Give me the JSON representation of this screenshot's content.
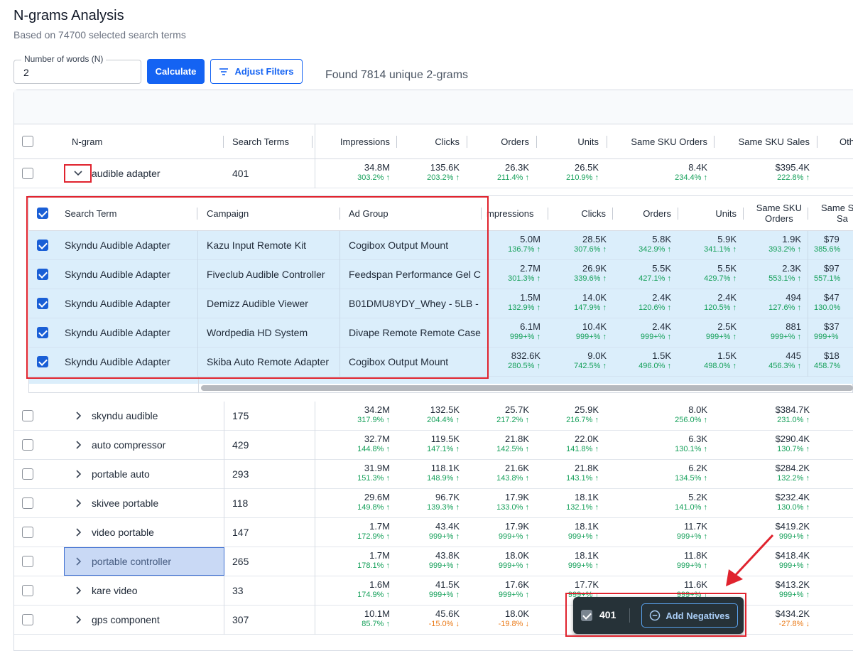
{
  "header": {
    "title": "N-grams Analysis",
    "subtitle": "Based on 74700 selected search terms"
  },
  "controls": {
    "n_label": "Number of words (N)",
    "n_value": "2",
    "calculate_label": "Calculate",
    "adjust_filters_label": "Adjust Filters",
    "found_text": "Found 7814 unique 2-grams"
  },
  "columns": {
    "ngram": "N-gram",
    "search_terms": "Search Terms",
    "impressions": "Impressions",
    "clicks": "Clicks",
    "orders": "Orders",
    "units": "Units",
    "same_sku_orders": "Same SKU Orders",
    "same_sku_sales": "Same SKU Sales",
    "other": "Oth"
  },
  "expanded_row": {
    "ngram": "audible adapter",
    "search_terms": "401",
    "impressions": "34.8M",
    "impressions_pct": "303.2% ↑",
    "clicks": "135.6K",
    "clicks_pct": "203.2% ↑",
    "orders": "26.3K",
    "orders_pct": "211.4% ↑",
    "units": "26.5K",
    "units_pct": "210.9% ↑",
    "sso": "8.4K",
    "sso_pct": "234.4% ↑",
    "sss": "$395.4K",
    "sss_pct": "222.8% ↑"
  },
  "detail": {
    "columns": {
      "search_term": "Search Term",
      "campaign": "Campaign",
      "ad_group": "Ad Group",
      "impressions": "mpressions",
      "clicks": "Clicks",
      "orders": "Orders",
      "units": "Units",
      "same_sku_orders_1": "Same SKU",
      "same_sku_orders_2": "Orders",
      "same_sku_sales_1": "Same S",
      "same_sku_sales_2": "Sa"
    },
    "rows": [
      {
        "term": "Skyndu Audible Adapter",
        "campaign": "Kazu Input Remote Kit",
        "ad_group": "Cogibox Output Mount",
        "imp": "5.0M",
        "imp_pct": "136.7% ↑",
        "clk": "28.5K",
        "clk_pct": "307.6% ↑",
        "ord": "5.8K",
        "ord_pct": "342.9% ↑",
        "uni": "5.9K",
        "uni_pct": "341.1% ↑",
        "sso": "1.9K",
        "sso_pct": "393.2% ↑",
        "sss": "$79",
        "sss_pct": "385.6%"
      },
      {
        "term": "Skyndu Audible Adapter",
        "campaign": "Fiveclub Audible Controller",
        "ad_group": "Feedspan Performance Gel C",
        "imp": "2.7M",
        "imp_pct": "301.3% ↑",
        "clk": "26.9K",
        "clk_pct": "339.6% ↑",
        "ord": "5.5K",
        "ord_pct": "427.1% ↑",
        "uni": "5.5K",
        "uni_pct": "429.7% ↑",
        "sso": "2.3K",
        "sso_pct": "553.1% ↑",
        "sss": "$97",
        "sss_pct": "557.1%"
      },
      {
        "term": "Skyndu Audible Adapter",
        "campaign": "Demizz Audible Viewer",
        "ad_group": "B01DMU8YDY_Whey - 5LB - \\",
        "imp": "1.5M",
        "imp_pct": "132.9% ↑",
        "clk": "14.0K",
        "clk_pct": "147.9% ↑",
        "ord": "2.4K",
        "ord_pct": "120.6% ↑",
        "uni": "2.4K",
        "uni_pct": "120.5% ↑",
        "sso": "494",
        "sso_pct": "127.6% ↑",
        "sss": "$47",
        "sss_pct": "130.0%"
      },
      {
        "term": "Skyndu Audible Adapter",
        "campaign": "Wordpedia HD System",
        "ad_group": "Divape Remote Remote Case",
        "imp": "6.1M",
        "imp_pct": "999+% ↑",
        "clk": "10.4K",
        "clk_pct": "999+% ↑",
        "ord": "2.4K",
        "ord_pct": "999+% ↑",
        "uni": "2.5K",
        "uni_pct": "999+% ↑",
        "sso": "881",
        "sso_pct": "999+% ↑",
        "sss": "$37",
        "sss_pct": "999+%"
      },
      {
        "term": "Skyndu Audible Adapter",
        "campaign": "Skiba Auto Remote Adapter",
        "ad_group": "Cogibox Output Mount",
        "imp": "832.6K",
        "imp_pct": "280.5% ↑",
        "clk": "9.0K",
        "clk_pct": "742.5% ↑",
        "ord": "1.5K",
        "ord_pct": "496.0% ↑",
        "uni": "1.5K",
        "uni_pct": "498.0% ↑",
        "sso": "445",
        "sso_pct": "456.3% ↑",
        "sss": "$18",
        "sss_pct": "458.7%"
      }
    ]
  },
  "rows": [
    {
      "ngram": "skyndu audible",
      "terms": "175",
      "imp": "34.2M",
      "imp_pct": "317.9% ↑",
      "clk": "132.5K",
      "clk_pct": "204.4% ↑",
      "ord": "25.7K",
      "ord_pct": "217.2% ↑",
      "uni": "25.9K",
      "uni_pct": "216.7% ↑",
      "sso": "8.0K",
      "sso_pct": "256.0% ↑",
      "sss": "$384.7K",
      "sss_pct": "231.0% ↑"
    },
    {
      "ngram": "auto compressor",
      "terms": "429",
      "imp": "32.7M",
      "imp_pct": "144.8% ↑",
      "clk": "119.5K",
      "clk_pct": "147.1% ↑",
      "ord": "21.8K",
      "ord_pct": "142.5% ↑",
      "uni": "22.0K",
      "uni_pct": "141.8% ↑",
      "sso": "6.3K",
      "sso_pct": "130.1% ↑",
      "sss": "$290.4K",
      "sss_pct": "130.7% ↑"
    },
    {
      "ngram": "portable auto",
      "terms": "293",
      "imp": "31.9M",
      "imp_pct": "151.3% ↑",
      "clk": "118.1K",
      "clk_pct": "148.9% ↑",
      "ord": "21.6K",
      "ord_pct": "143.8% ↑",
      "uni": "21.8K",
      "uni_pct": "143.1% ↑",
      "sso": "6.2K",
      "sso_pct": "134.5% ↑",
      "sss": "$284.2K",
      "sss_pct": "132.2% ↑"
    },
    {
      "ngram": "skivee portable",
      "terms": "118",
      "imp": "29.6M",
      "imp_pct": "149.8% ↑",
      "clk": "96.7K",
      "clk_pct": "139.3% ↑",
      "ord": "17.9K",
      "ord_pct": "133.0% ↑",
      "uni": "18.1K",
      "uni_pct": "132.1% ↑",
      "sso": "5.2K",
      "sso_pct": "141.0% ↑",
      "sss": "$232.4K",
      "sss_pct": "130.0% ↑"
    },
    {
      "ngram": "video portable",
      "terms": "147",
      "imp": "1.7M",
      "imp_pct": "172.9% ↑",
      "clk": "43.4K",
      "clk_pct": "999+% ↑",
      "ord": "17.9K",
      "ord_pct": "999+% ↑",
      "uni": "18.1K",
      "uni_pct": "999+% ↑",
      "sso": "11.7K",
      "sso_pct": "999+% ↑",
      "sss": "$419.2K",
      "sss_pct": "999+% ↑"
    },
    {
      "ngram": "portable controller",
      "terms": "265",
      "imp": "1.7M",
      "imp_pct": "178.1% ↑",
      "clk": "43.8K",
      "clk_pct": "999+% ↑",
      "ord": "18.0K",
      "ord_pct": "999+% ↑",
      "uni": "18.1K",
      "uni_pct": "999+% ↑",
      "sso": "11.8K",
      "sso_pct": "999+% ↑",
      "sss": "$418.4K",
      "sss_pct": "999+% ↑"
    },
    {
      "ngram": "kare video",
      "terms": "33",
      "imp": "1.6M",
      "imp_pct": "174.9% ↑",
      "clk": "41.5K",
      "clk_pct": "999+% ↑",
      "ord": "17.6K",
      "ord_pct": "999+% ↑",
      "uni": "17.7K",
      "uni_pct": "999+% ↑",
      "sso": "11.6K",
      "sso_pct": "999+% ↑",
      "sss": "$413.2K",
      "sss_pct": "999+% ↑"
    },
    {
      "ngram": "gps component",
      "terms": "307",
      "imp": "10.1M",
      "imp_pct": "85.7% ↑",
      "clk": "45.6K",
      "clk_pct": "-15.0% ↓",
      "ord": "18.0K",
      "ord_pct": "-19.8% ↓",
      "uni": "",
      "uni_pct": "",
      "sso": "",
      "sso_pct": "",
      "sss": "$434.2K",
      "sss_pct": "-27.8% ↓"
    }
  ],
  "selection_bar": {
    "count": "401",
    "add_negatives_label": "Add Negatives"
  },
  "colors": {
    "accent": "#1463f3",
    "positive": "#15a05a",
    "negative": "#ea7a18",
    "highlight": "#e0232e",
    "detail_bg": "#dbeefb"
  }
}
